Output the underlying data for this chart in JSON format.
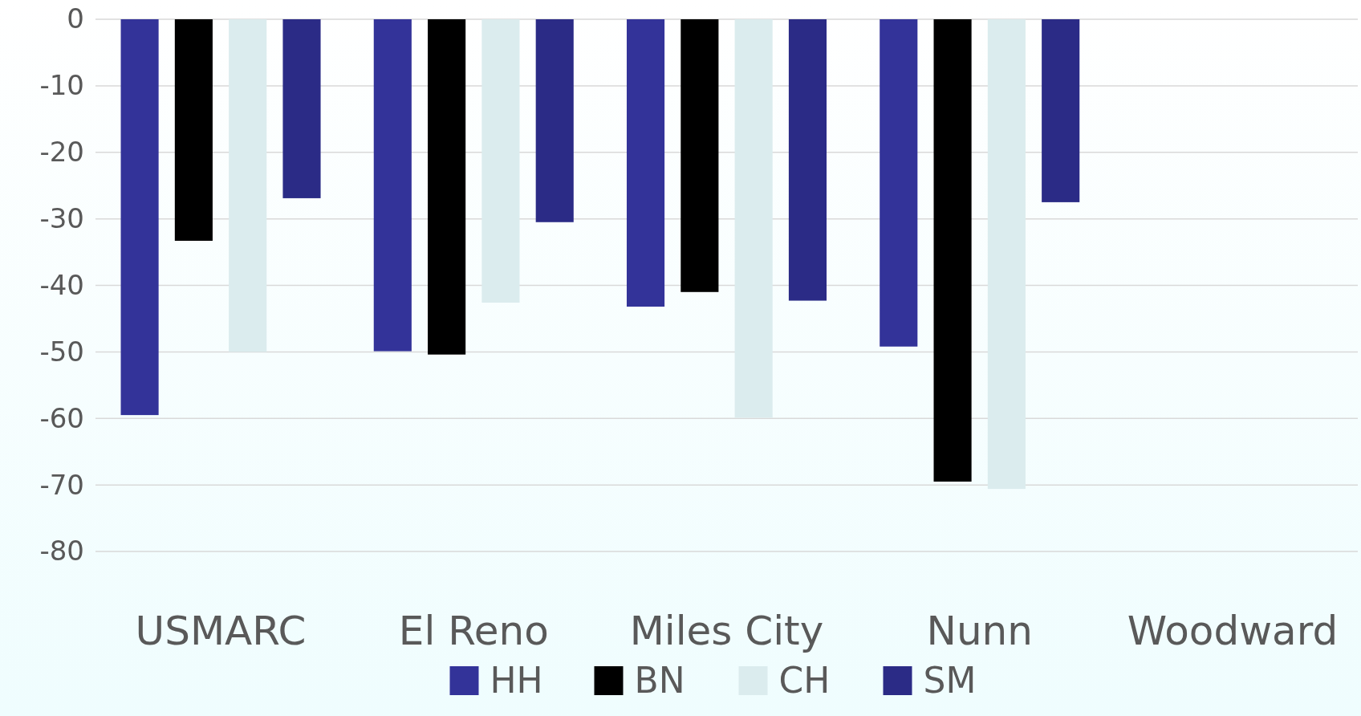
{
  "chart_data": {
    "type": "bar",
    "categories": [
      "USMARC",
      "El Reno",
      "Miles City",
      "Nunn",
      "Woodward"
    ],
    "series": [
      {
        "name": "HH",
        "color": "#333399",
        "values": [
          -59.5,
          -49.9,
          -43.2,
          -49.2,
          null
        ]
      },
      {
        "name": "BN",
        "color": "#000000",
        "values": [
          -33.3,
          -50.4,
          -41,
          -69.5,
          null
        ]
      },
      {
        "name": "CH",
        "color": "#dbecee",
        "values": [
          -50,
          -42.6,
          -59.9,
          -70.6,
          null
        ]
      },
      {
        "name": "SM",
        "color": "#2b2b86",
        "values": [
          -26.9,
          -30.5,
          -42.3,
          -27.5,
          null
        ]
      }
    ],
    "ylim": [
      -80,
      0
    ],
    "yticks": [
      -80,
      -70,
      -60,
      -50,
      -40,
      -30,
      -20,
      -10,
      0
    ],
    "grid": "y",
    "legend": "bottom"
  }
}
